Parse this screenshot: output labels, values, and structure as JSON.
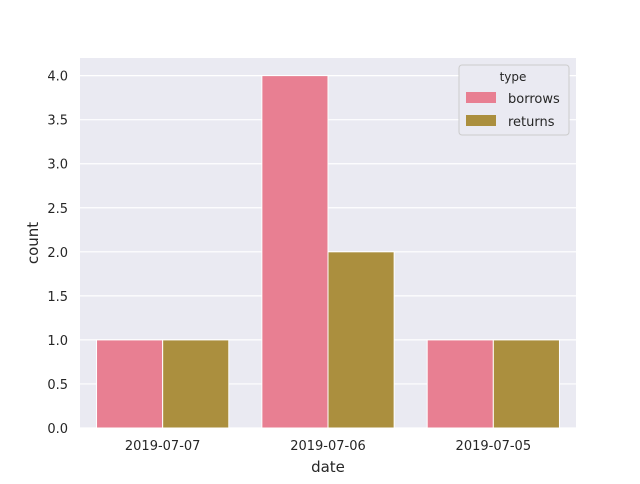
{
  "chart_data": {
    "type": "bar",
    "xlabel": "date",
    "ylabel": "count",
    "categories": [
      "2019-07-07",
      "2019-07-06",
      "2019-07-05"
    ],
    "series": [
      {
        "name": "borrows",
        "color": "#e87f92",
        "values": [
          1,
          4,
          1
        ]
      },
      {
        "name": "returns",
        "color": "#ab8f3e",
        "values": [
          1,
          2,
          1
        ]
      }
    ],
    "ylim": [
      0,
      4.2
    ],
    "yticks": [
      "0.0",
      "0.5",
      "1.0",
      "1.5",
      "2.0",
      "2.5",
      "3.0",
      "3.5",
      "4.0"
    ],
    "legend": {
      "title": "type",
      "placement": "top-right"
    },
    "grid": true,
    "background": "#eaeaf2"
  }
}
